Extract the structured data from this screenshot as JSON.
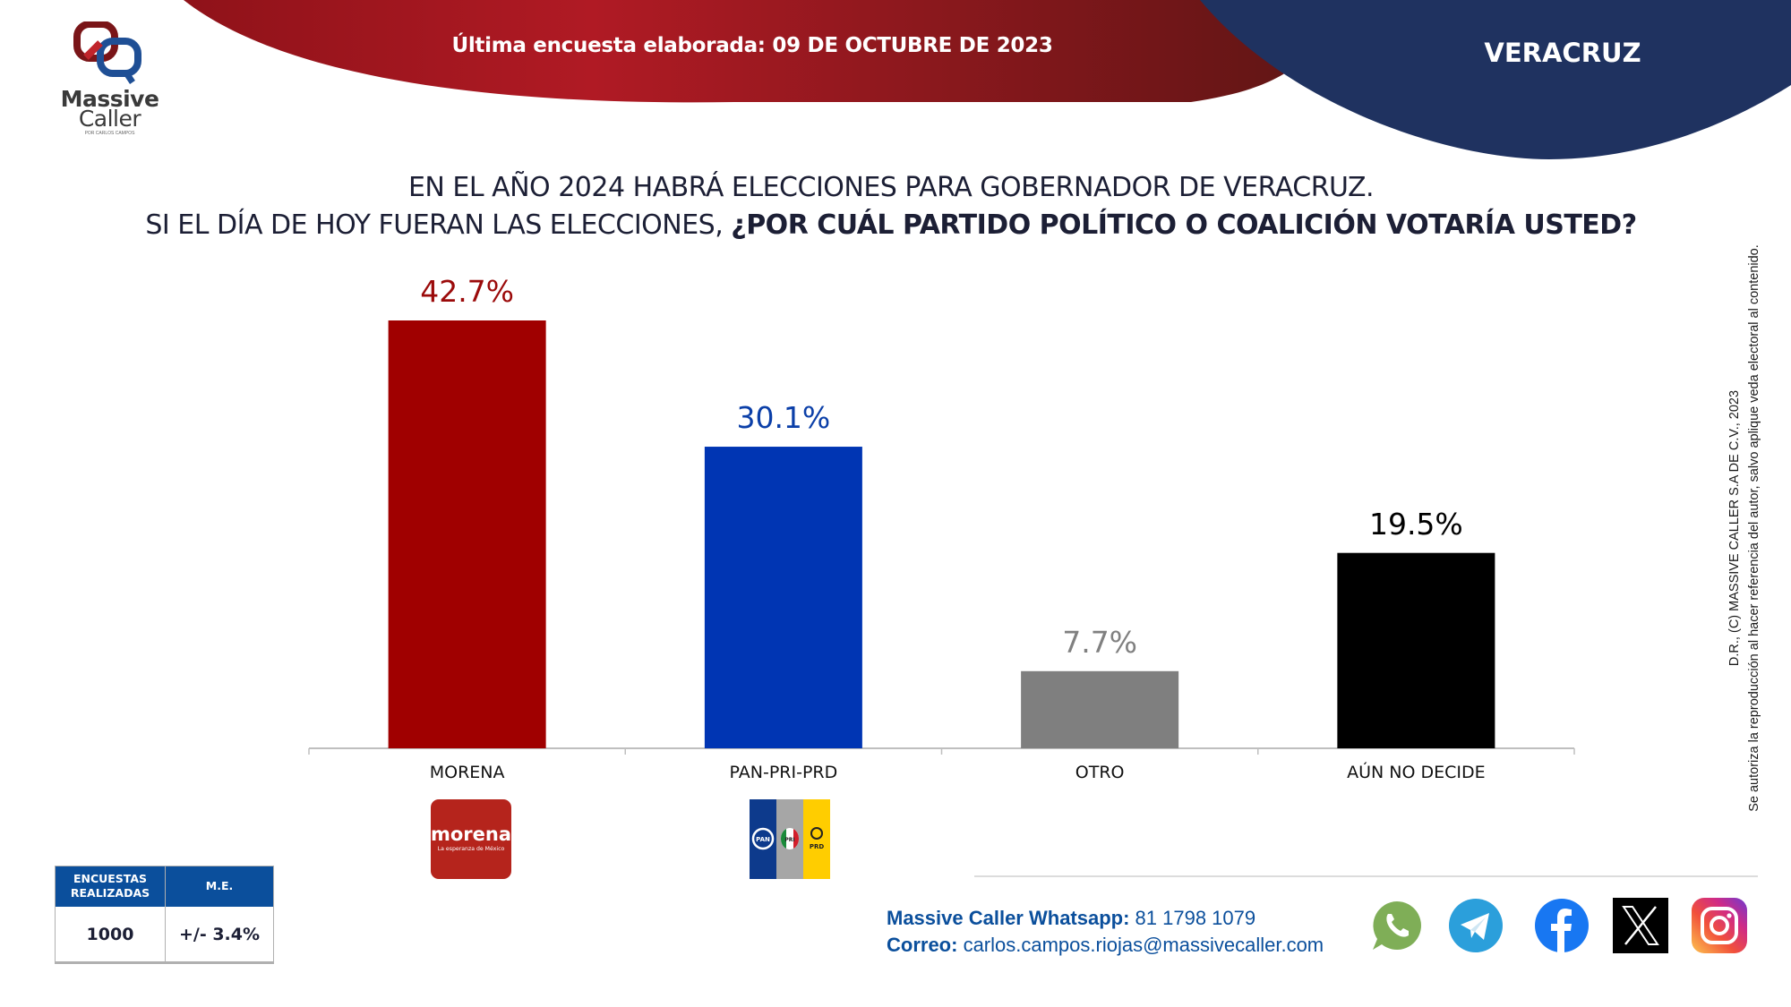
{
  "header": {
    "survey_date_label": "Última encuesta elaborada: 09 DE OCTUBRE DE 2023",
    "state": "VERACRUZ",
    "colors": {
      "red_band": "#a8161f",
      "blue_band": "#1f3260"
    }
  },
  "logo": {
    "word1": "Massive",
    "word2": "Caller",
    "subtitle": "POR CARLOS CAMPOS"
  },
  "question": {
    "line1": "EN EL AÑO 2024 HABRÁ ELECCIONES PARA GOBERNADOR DE VERACRUZ.",
    "line2_regular": "SI EL DÍA DE HOY FUERAN LAS ELECCIONES, ",
    "line2_bold": "¿POR CUÁL PARTIDO POLÍTICO O COALICIÓN VOTARÍA USTED?"
  },
  "chart_data": {
    "type": "bar",
    "title": "¿POR CUÁL PARTIDO POLÍTICO O COALICIÓN VOTARÍA USTED?",
    "xlabel": "",
    "ylabel": "",
    "ylim": [
      0,
      45
    ],
    "grid": false,
    "categories": [
      "MORENA",
      "PAN-PRI-PRD",
      "OTRO",
      "AÚN NO DECIDE"
    ],
    "values": [
      42.7,
      30.1,
      7.7,
      19.5
    ],
    "value_labels": [
      "42.7%",
      "30.1%",
      "7.7%",
      "19.5%"
    ],
    "colors": [
      "#a00000",
      "#0035b3",
      "#7f7f7f",
      "#000000"
    ],
    "label_colors": [
      "#9b0a0a",
      "#0b3fa8",
      "#808080",
      "#000000"
    ]
  },
  "party_logos": {
    "morena": {
      "name": "morena",
      "tagline": "La esperanza de México"
    },
    "coalition": {
      "pan": "PAN",
      "pri": "PRI",
      "prd": "PRD"
    }
  },
  "stats": {
    "col1_header": "ENCUESTAS REALIZADAS",
    "col2_header": "M.E.",
    "col1_value": "1000",
    "col2_value": "+/- 3.4%"
  },
  "copyright": {
    "line1": "D.R., (C) MASSIVE CALLER S.A DE C.V., 2023",
    "line2": "Se autoriza la reproducción al hacer referencia del autor, salvo aplique veda electoral al contenido."
  },
  "contact": {
    "whatsapp_label": "Massive Caller Whatsapp:",
    "whatsapp_number": " 81 1798 1079",
    "email_label": "Correo:",
    "email": " carlos.campos.riojas@massivecaller.com"
  },
  "social": [
    "whatsapp-icon",
    "telegram-icon",
    "facebook-icon",
    "x-icon",
    "instagram-icon"
  ]
}
